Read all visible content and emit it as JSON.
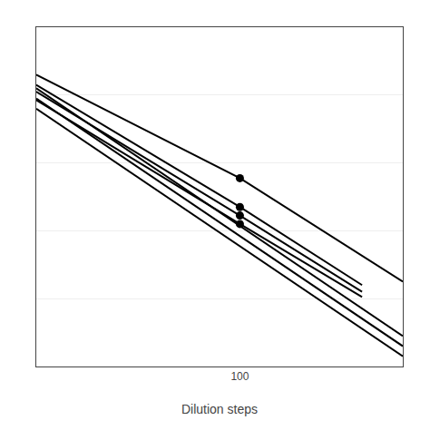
{
  "chart_data": {
    "type": "line",
    "xlabel": "Dilution steps",
    "xlim": [
      0,
      180
    ],
    "ylim": [
      0,
      10
    ],
    "xticks": [
      100
    ],
    "yticks": [
      2.0,
      4.0,
      6.0,
      8.0
    ],
    "tick_labels": "x",
    "grid": "y",
    "series": [
      {
        "x": [
          0,
          180
        ],
        "values": [
          7.6,
          0.3
        ],
        "color": "#000000"
      },
      {
        "x": [
          0,
          180
        ],
        "values": [
          7.9,
          0.6
        ],
        "color": "#000000"
      },
      {
        "x": [
          0,
          180
        ],
        "values": [
          8.2,
          0.9
        ],
        "color": "#000000"
      },
      {
        "x": [
          0,
          100,
          180
        ],
        "values": [
          8.6,
          5.55,
          2.5
        ],
        "color": "#000000"
      },
      {
        "x": [
          0,
          100,
          160
        ],
        "values": [
          8.3,
          4.7,
          2.4
        ],
        "color": "#000000"
      },
      {
        "x": [
          0,
          100,
          160
        ],
        "values": [
          8.1,
          4.45,
          2.2
        ],
        "color": "#000000"
      },
      {
        "x": [
          0,
          100,
          160
        ],
        "values": [
          7.85,
          4.2,
          2.05
        ],
        "color": "#000000"
      },
      {
        "type": "scatter",
        "marker": "circle",
        "color": "#000000",
        "x": [
          100,
          100,
          100,
          100
        ],
        "values": [
          5.55,
          4.7,
          4.45,
          4.2
        ]
      }
    ]
  }
}
